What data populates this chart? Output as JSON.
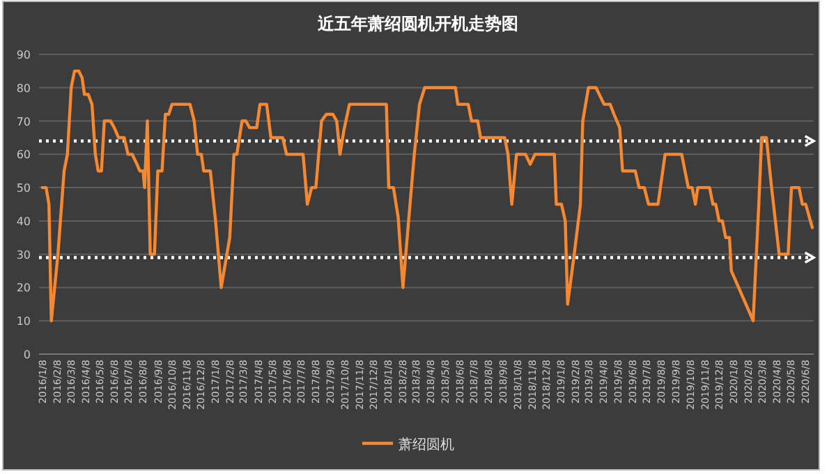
{
  "chart_data": {
    "type": "line",
    "title": "近五年萧绍圆机开机走势图",
    "x": [
      "2016-01-08",
      "2016-01-16",
      "2016-01-22",
      "2016-01-27",
      "2016-02-10",
      "2016-02-23",
      "2016-03-01",
      "2016-03-09",
      "2016-03-16",
      "2016-03-25",
      "2016-04-01",
      "2016-04-06",
      "2016-04-14",
      "2016-04-22",
      "2016-04-29",
      "2016-05-05",
      "2016-05-12",
      "2016-05-18",
      "2016-05-31",
      "2016-06-08",
      "2016-06-17",
      "2016-06-29",
      "2016-07-07",
      "2016-07-16",
      "2016-07-26",
      "2016-08-01",
      "2016-08-08",
      "2016-08-11",
      "2016-08-17",
      "2016-08-23",
      "2016-09-01",
      "2016-09-08",
      "2016-09-17",
      "2016-09-24",
      "2016-10-01",
      "2016-10-08",
      "2016-11-15",
      "2016-11-24",
      "2016-12-01",
      "2016-12-09",
      "2016-12-14",
      "2016-12-28",
      "2017-01-08",
      "2017-01-20",
      "2017-02-07",
      "2017-02-16",
      "2017-02-22",
      "2017-03-05",
      "2017-03-13",
      "2017-03-21",
      "2017-04-05",
      "2017-04-12",
      "2017-04-26",
      "2017-05-05",
      "2017-05-30",
      "2017-06-07",
      "2017-07-12",
      "2017-07-21",
      "2017-07-30",
      "2017-08-08",
      "2017-08-20",
      "2017-08-30",
      "2017-09-13",
      "2017-09-21",
      "2017-09-28",
      "2017-10-06",
      "2017-10-18",
      "2018-01-04",
      "2018-01-09",
      "2018-01-19",
      "2018-01-29",
      "2018-02-08",
      "2018-02-20",
      "2018-03-04",
      "2018-03-15",
      "2018-03-26",
      "2018-05-30",
      "2018-06-04",
      "2018-06-26",
      "2018-07-03",
      "2018-07-16",
      "2018-07-22",
      "2018-09-11",
      "2018-09-18",
      "2018-09-26",
      "2018-10-06",
      "2018-10-25",
      "2018-11-04",
      "2018-11-14",
      "2018-12-25",
      "2018-12-29",
      "2019-01-09",
      "2019-01-17",
      "2019-01-22",
      "2019-02-05",
      "2019-02-18",
      "2019-02-23",
      "2019-03-07",
      "2019-03-23",
      "2019-04-09",
      "2019-04-22",
      "2019-04-30",
      "2019-05-12",
      "2019-05-18",
      "2019-06-14",
      "2019-06-22",
      "2019-07-03",
      "2019-07-12",
      "2019-08-01",
      "2019-08-16",
      "2019-09-20",
      "2019-10-04",
      "2019-10-12",
      "2019-10-19",
      "2019-10-24",
      "2019-11-18",
      "2019-11-25",
      "2019-12-01",
      "2019-12-08",
      "2019-12-15",
      "2019-12-22",
      "2019-12-30",
      "2020-01-03",
      "2020-02-18",
      "2020-03-01",
      "2020-03-07",
      "2020-03-17",
      "2020-03-28",
      "2020-04-13",
      "2020-05-02",
      "2020-05-09",
      "2020-05-25",
      "2020-06-01",
      "2020-06-08",
      "2020-06-22"
    ],
    "series": [
      {
        "name": "萧绍圆机",
        "color": "#f7882f",
        "values": [
          50,
          50,
          45,
          10,
          30,
          55,
          60,
          80,
          85,
          85,
          83,
          78,
          78,
          75,
          60,
          55,
          55,
          70,
          70,
          68,
          65,
          65,
          60,
          60,
          57,
          55,
          55,
          50,
          70,
          30,
          30,
          55,
          55,
          72,
          72,
          75,
          75,
          70,
          60,
          60,
          55,
          55,
          40,
          20,
          35,
          60,
          60,
          70,
          70,
          68,
          68,
          75,
          75,
          65,
          65,
          60,
          60,
          45,
          50,
          50,
          70,
          72,
          72,
          70,
          60,
          67,
          75,
          75,
          50,
          50,
          41,
          20,
          40,
          60,
          75,
          80,
          80,
          75,
          75,
          70,
          70,
          65,
          65,
          60,
          45,
          60,
          60,
          57,
          60,
          60,
          45,
          45,
          40,
          15,
          30,
          45,
          70,
          80,
          80,
          75,
          75,
          72,
          68,
          55,
          55,
          50,
          50,
          45,
          45,
          60,
          60,
          50,
          50,
          45,
          50,
          50,
          45,
          45,
          40,
          40,
          35,
          35,
          25,
          10,
          45,
          65,
          65,
          50,
          30,
          30,
          50,
          50,
          45,
          45,
          38
        ]
      }
    ],
    "xlim": [
      "2016-01-01",
      "2020-06-25"
    ],
    "xticks": [
      {
        "value": "2016-01-08",
        "label": "2016/1/8"
      },
      {
        "value": "2016-02-08",
        "label": "2016/2/8"
      },
      {
        "value": "2016-03-08",
        "label": "2016/3/8"
      },
      {
        "value": "2016-04-08",
        "label": "2016/4/8"
      },
      {
        "value": "2016-05-08",
        "label": "2016/5/8"
      },
      {
        "value": "2016-06-08",
        "label": "2016/6/8"
      },
      {
        "value": "2016-07-08",
        "label": "2016/7/8"
      },
      {
        "value": "2016-08-08",
        "label": "2016/8/8"
      },
      {
        "value": "2016-09-08",
        "label": "2016/9/8"
      },
      {
        "value": "2016-10-08",
        "label": "2016/10/8"
      },
      {
        "value": "2016-11-08",
        "label": "2016/11/8"
      },
      {
        "value": "2016-12-08",
        "label": "2016/12/8"
      },
      {
        "value": "2017-01-08",
        "label": "2017/1/8"
      },
      {
        "value": "2017-02-08",
        "label": "2017/2/8"
      },
      {
        "value": "2017-03-08",
        "label": "2017/3/8"
      },
      {
        "value": "2017-04-08",
        "label": "2017/4/8"
      },
      {
        "value": "2017-05-08",
        "label": "2017/5/8"
      },
      {
        "value": "2017-06-08",
        "label": "2017/6/8"
      },
      {
        "value": "2017-07-08",
        "label": "2017/7/8"
      },
      {
        "value": "2017-08-08",
        "label": "2017/8/8"
      },
      {
        "value": "2017-09-08",
        "label": "2017/9/8"
      },
      {
        "value": "2017-10-08",
        "label": "2017/10/8"
      },
      {
        "value": "2017-11-08",
        "label": "2017/11/8"
      },
      {
        "value": "2017-12-08",
        "label": "2017/12/8"
      },
      {
        "value": "2018-01-08",
        "label": "2018/1/8"
      },
      {
        "value": "2018-02-08",
        "label": "2018/2/8"
      },
      {
        "value": "2018-03-08",
        "label": "2018/3/8"
      },
      {
        "value": "2018-04-08",
        "label": "2018/4/8"
      },
      {
        "value": "2018-05-08",
        "label": "2018/5/8"
      },
      {
        "value": "2018-06-08",
        "label": "2018/6/8"
      },
      {
        "value": "2018-07-08",
        "label": "2018/7/8"
      },
      {
        "value": "2018-08-08",
        "label": "2018/8/8"
      },
      {
        "value": "2018-09-08",
        "label": "2018/9/8"
      },
      {
        "value": "2018-10-08",
        "label": "2018/10/8"
      },
      {
        "value": "2018-11-08",
        "label": "2018/11/8"
      },
      {
        "value": "2018-12-08",
        "label": "2018/12/8"
      },
      {
        "value": "2019-01-08",
        "label": "2019/1/8"
      },
      {
        "value": "2019-02-08",
        "label": "2019/2/8"
      },
      {
        "value": "2019-03-08",
        "label": "2019/3/8"
      },
      {
        "value": "2019-04-08",
        "label": "2019/4/8"
      },
      {
        "value": "2019-05-08",
        "label": "2019/5/8"
      },
      {
        "value": "2019-06-08",
        "label": "2019/6/8"
      },
      {
        "value": "2019-07-08",
        "label": "2019/7/8"
      },
      {
        "value": "2019-08-08",
        "label": "2019/8/8"
      },
      {
        "value": "2019-09-08",
        "label": "2019/9/8"
      },
      {
        "value": "2019-10-08",
        "label": "2019/10/8"
      },
      {
        "value": "2019-11-08",
        "label": "2019/11/8"
      },
      {
        "value": "2019-12-08",
        "label": "2019/12/8"
      },
      {
        "value": "2020-01-08",
        "label": "2020/1/8"
      },
      {
        "value": "2020-02-08",
        "label": "2020/2/8"
      },
      {
        "value": "2020-03-08",
        "label": "2020/3/8"
      },
      {
        "value": "2020-04-08",
        "label": "2020/4/8"
      },
      {
        "value": "2020-05-08",
        "label": "2020/5/8"
      },
      {
        "value": "2020-06-08",
        "label": "2020/6/8"
      }
    ],
    "ylim": [
      0,
      90
    ],
    "yticks": [
      0,
      10,
      20,
      30,
      40,
      50,
      60,
      70,
      80,
      90
    ],
    "ref_lines": [
      {
        "axis": "y",
        "value": 64,
        "color": "#ffffff",
        "line_style": "dotted"
      },
      {
        "axis": "y",
        "value": 29,
        "color": "#ffffff",
        "line_style": "dotted"
      }
    ],
    "grid": "y",
    "legend": "bottom",
    "marker": "none",
    "line_style": "solid"
  }
}
